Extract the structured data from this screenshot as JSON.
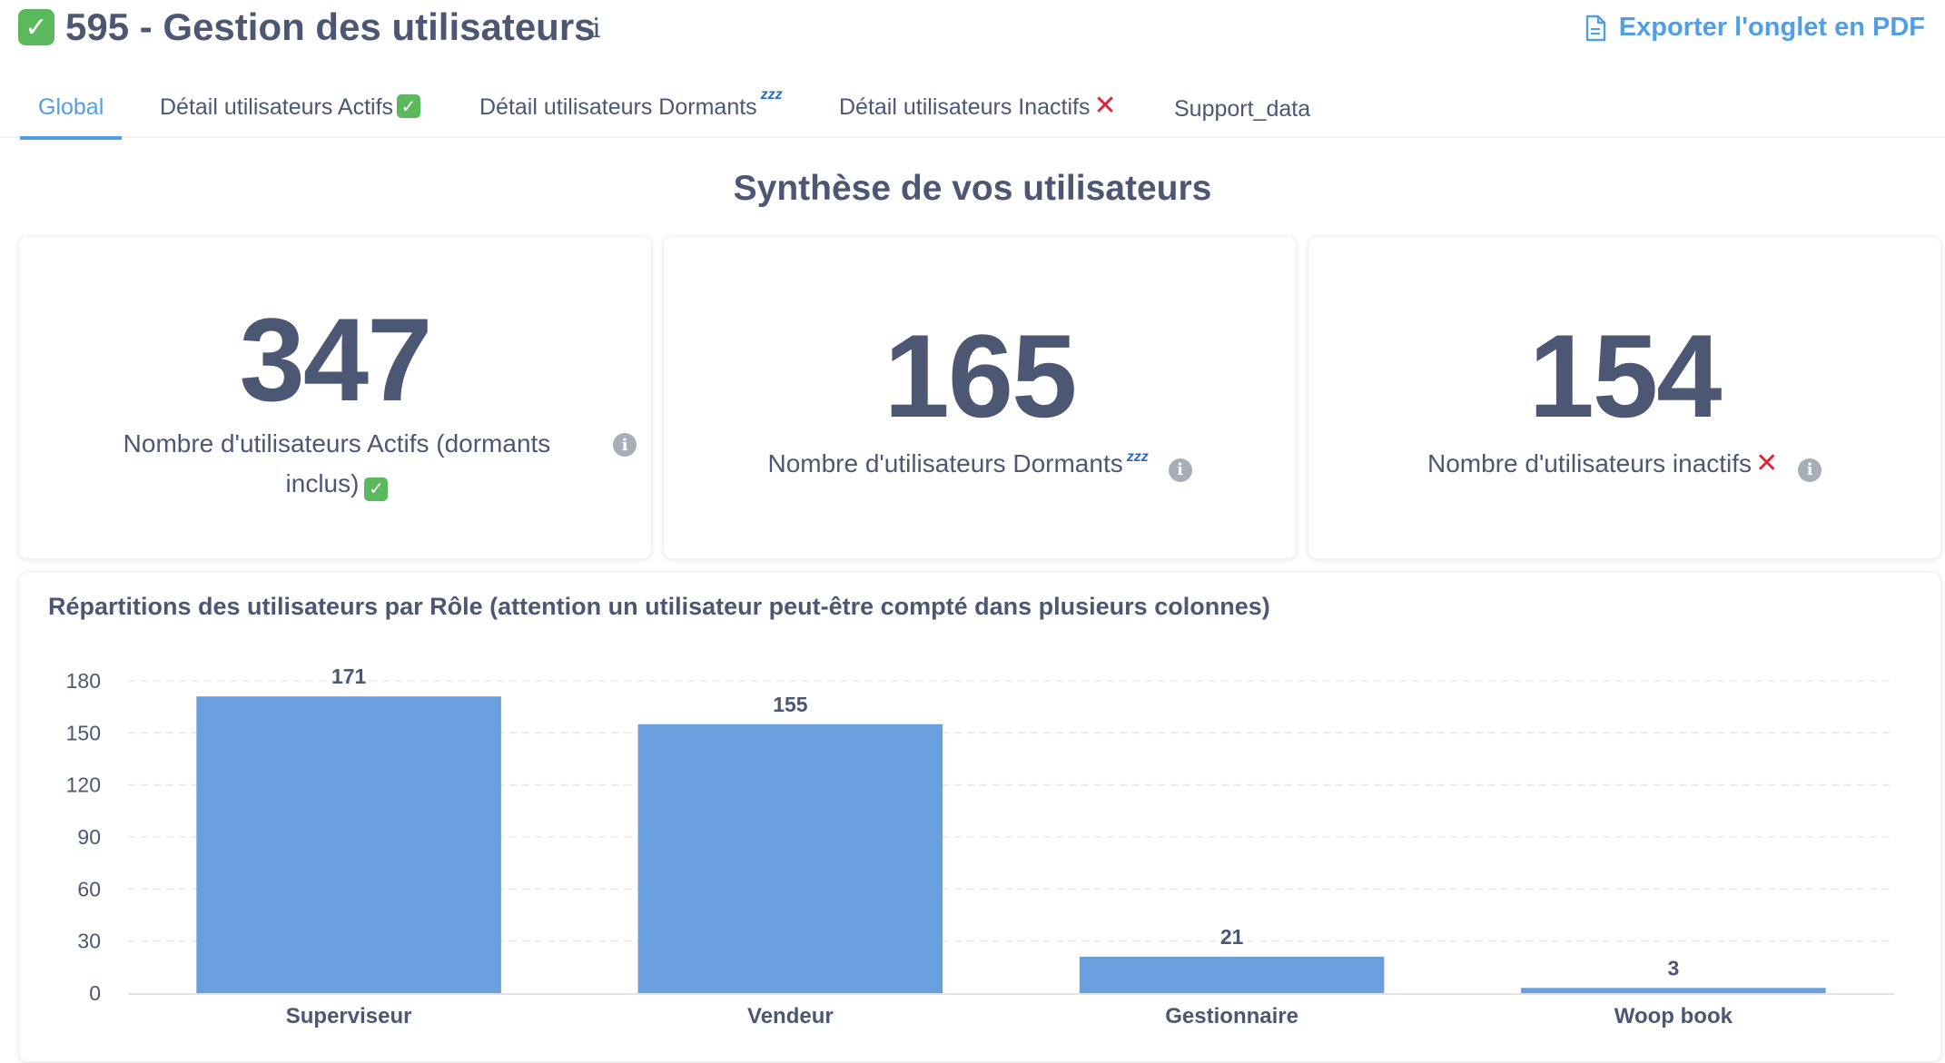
{
  "header": {
    "title": "595 - Gestion des utilisateurs",
    "title_icon": "check-mark-button",
    "info_label": "i",
    "export_label": "Exporter l'onglet en PDF"
  },
  "tabs": [
    {
      "label": "Global",
      "suffix_icon": "",
      "active": true
    },
    {
      "label": "Détail utilisateurs Actifs",
      "suffix_icon": "check-mark-button",
      "active": false
    },
    {
      "label": "Détail utilisateurs Dormants",
      "suffix_icon": "zzz",
      "active": false
    },
    {
      "label": "Détail utilisateurs Inactifs",
      "suffix_icon": "cross-mark",
      "active": false
    },
    {
      "label": "Support_data",
      "suffix_icon": "",
      "active": false
    }
  ],
  "section_title": "Synthèse de vos utilisateurs",
  "kpis": [
    {
      "value": "347",
      "label_line1": "Nombre d'utilisateurs Actifs (dormants",
      "label_line2": "inclus)"
    },
    {
      "value": "165",
      "label": "Nombre d'utilisateurs Dormants"
    },
    {
      "value": "154",
      "label": "Nombre d'utilisateurs inactifs"
    }
  ],
  "colors": {
    "accent": "#509ee3",
    "bar": "#6a9fdf",
    "text": "#4c5773",
    "check_green": "#5cb85c",
    "cross_red": "#e0243b"
  },
  "chart_data": {
    "type": "bar",
    "title": "Répartitions des utilisateurs par Rôle (attention un utilisateur peut-être compté dans plusieurs colonnes)",
    "categories": [
      "Superviseur",
      "Vendeur",
      "Gestionnaire",
      "Woop book"
    ],
    "values": [
      171,
      155,
      21,
      3
    ],
    "yticks": [
      0,
      30,
      60,
      90,
      120,
      150,
      180
    ],
    "ylim": [
      0,
      180
    ],
    "grid": true,
    "data_labels": true
  }
}
